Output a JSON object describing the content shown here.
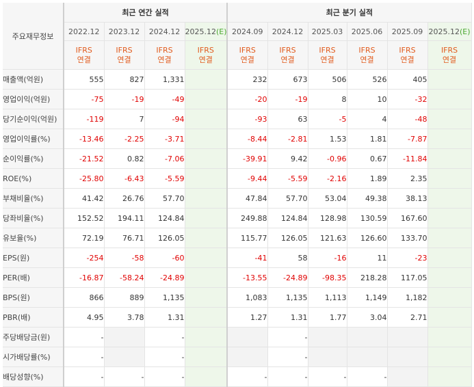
{
  "header": {
    "row_label": "주요재무정보",
    "annual_title": "최근 연간 실적",
    "quarter_title": "최근 분기 실적",
    "annual_periods": [
      "2022.12",
      "2023.12",
      "2024.12",
      "2025.12"
    ],
    "quarter_periods": [
      "2024.09",
      "2024.12",
      "2025.03",
      "2025.06",
      "2025.09",
      "2025.12"
    ],
    "estimate_suffix": "(E)",
    "ifrs_line1": "IFRS",
    "ifrs_line2": "연결"
  },
  "rows": [
    {
      "label": "매출액(억원)",
      "values": [
        "555",
        "827",
        "1,331",
        "",
        "232",
        "673",
        "506",
        "526",
        "405",
        ""
      ]
    },
    {
      "label": "영업이익(억원)",
      "values": [
        "-75",
        "-19",
        "-49",
        "",
        "-20",
        "-19",
        "8",
        "10",
        "-32",
        ""
      ]
    },
    {
      "label": "당기순이익(억원)",
      "values": [
        "-119",
        "7",
        "-94",
        "",
        "-93",
        "63",
        "-5",
        "4",
        "-48",
        ""
      ]
    },
    {
      "label": "영업이익률(%)",
      "values": [
        "-13.46",
        "-2.25",
        "-3.71",
        "",
        "-8.44",
        "-2.81",
        "1.53",
        "1.81",
        "-7.87",
        ""
      ]
    },
    {
      "label": "순이익률(%)",
      "values": [
        "-21.52",
        "0.82",
        "-7.06",
        "",
        "-39.91",
        "9.42",
        "-0.96",
        "0.67",
        "-11.84",
        ""
      ]
    },
    {
      "label": "ROE(%)",
      "values": [
        "-25.80",
        "-6.43",
        "-5.59",
        "",
        "-9.44",
        "-5.59",
        "-2.16",
        "1.89",
        "2.35",
        ""
      ]
    },
    {
      "label": "부채비율(%)",
      "values": [
        "41.42",
        "26.76",
        "57.70",
        "",
        "47.84",
        "57.70",
        "53.04",
        "49.38",
        "38.13",
        ""
      ]
    },
    {
      "label": "당좌비율(%)",
      "values": [
        "152.52",
        "194.11",
        "124.84",
        "",
        "249.88",
        "124.84",
        "128.98",
        "130.59",
        "167.60",
        ""
      ]
    },
    {
      "label": "유보율(%)",
      "values": [
        "72.19",
        "76.71",
        "126.05",
        "",
        "115.77",
        "126.05",
        "121.63",
        "126.60",
        "133.70",
        ""
      ]
    },
    {
      "label": "EPS(원)",
      "values": [
        "-254",
        "-58",
        "-60",
        "",
        "-41",
        "58",
        "-16",
        "11",
        "-23",
        ""
      ]
    },
    {
      "label": "PER(배)",
      "values": [
        "-16.87",
        "-58.24",
        "-24.89",
        "",
        "-13.55",
        "-24.89",
        "-98.35",
        "218.28",
        "117.05",
        ""
      ]
    },
    {
      "label": "BPS(원)",
      "values": [
        "866",
        "889",
        "1,135",
        "",
        "1,083",
        "1,135",
        "1,113",
        "1,149",
        "1,182",
        ""
      ]
    },
    {
      "label": "PBR(배)",
      "values": [
        "4.95",
        "3.78",
        "1.31",
        "",
        "1.27",
        "1.31",
        "1.77",
        "3.04",
        "2.71",
        ""
      ]
    },
    {
      "label": "주당배당금(원)",
      "values": [
        "-",
        "",
        "-",
        "",
        "",
        "-",
        "",
        "",
        "",
        ""
      ]
    },
    {
      "label": "시가배당률(%)",
      "values": [
        "-",
        "",
        "-",
        "",
        "",
        "-",
        "",
        "",
        "",
        ""
      ]
    },
    {
      "label": "배당성향(%)",
      "values": [
        "-",
        "-",
        "-",
        "",
        "-",
        "-",
        "-",
        "-",
        "",
        ""
      ]
    }
  ]
}
